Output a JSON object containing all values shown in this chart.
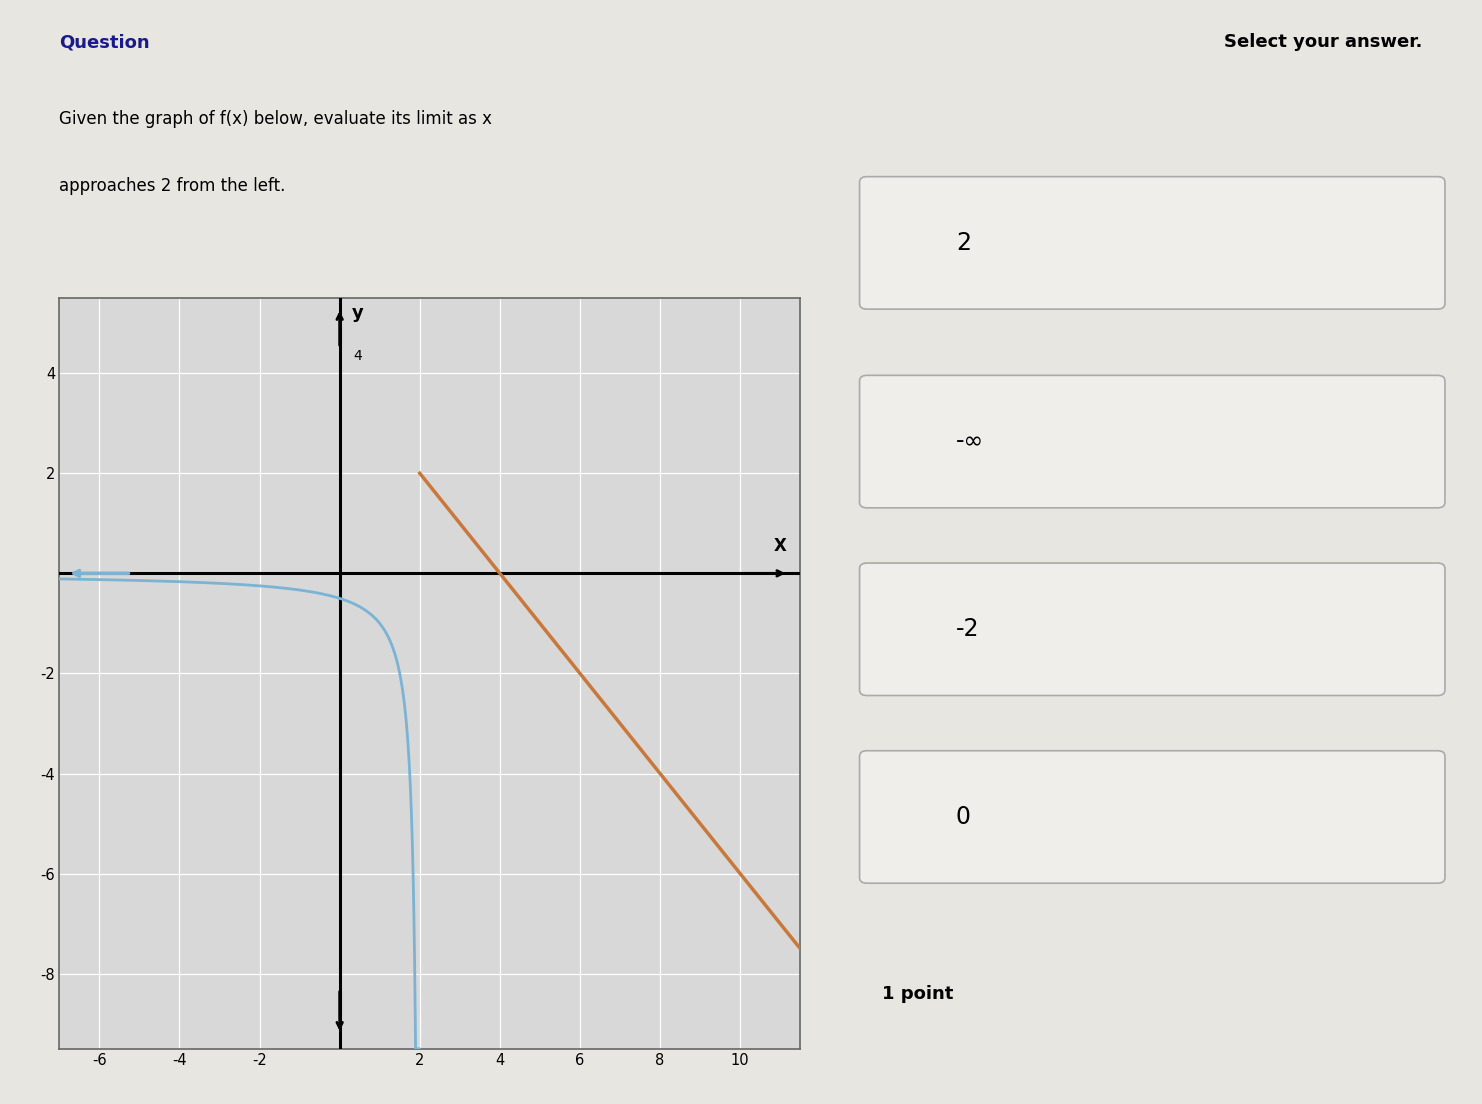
{
  "title_left": "Question",
  "title_right": "Select your answer.",
  "question_line1": "Given the graph of f(x) below, evaluate its limit as x",
  "question_line2": "approaches 2 from the left.",
  "answers": [
    "2",
    "-∞",
    "-2",
    "0"
  ],
  "point_label": "1 point",
  "graph": {
    "xlim": [
      -7,
      11.5
    ],
    "ylim": [
      -9.5,
      5.5
    ],
    "xticks": [
      -6,
      -4,
      -2,
      0,
      2,
      4,
      6,
      8,
      10
    ],
    "yticks": [
      -8,
      -6,
      -4,
      -2,
      0,
      2,
      4
    ],
    "xlabel": "X",
    "ylabel": "y",
    "bg_color": "#d8d8d8",
    "grid_color": "#ffffff",
    "blue_color": "#7ab3d4",
    "orange_color": "#c8783a",
    "vertical_asymptote": 2,
    "orange_start_x": 2,
    "orange_start_y": 2,
    "orange_slope": -1,
    "orange_end_x": 11.5
  },
  "bg_page": "#e8e6e0",
  "answer_box_color": "#f0eeea",
  "answer_border_color": "#aaaaaa"
}
